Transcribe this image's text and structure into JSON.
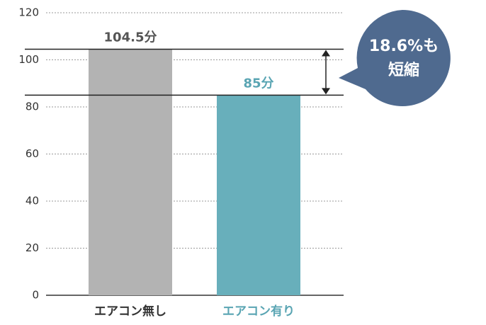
{
  "chart_data": {
    "type": "bar",
    "categories": [
      "エアコン無し",
      "エアコン有り"
    ],
    "values": [
      104.5,
      85
    ],
    "value_labels": [
      "104.5分",
      "85分"
    ],
    "colors": [
      "#b3b3b3",
      "#68afbb"
    ],
    "ylim": [
      0,
      120
    ],
    "yticks": [
      0,
      20,
      40,
      60,
      80,
      100,
      120
    ],
    "grid": true,
    "annotation": [
      "18.6%も",
      "短縮"
    ]
  }
}
